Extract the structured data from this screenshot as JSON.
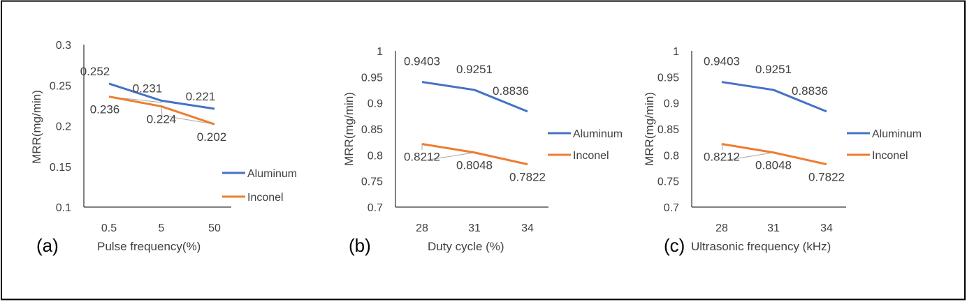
{
  "colors": {
    "aluminum": "#4472C4",
    "inconel": "#ED7D31",
    "axis": "#000000",
    "tick_text": "#404040",
    "leader": "#A6A6A6"
  },
  "chart_data": [
    {
      "type": "line",
      "panel_label": "(a)",
      "xlabel": "Pulse frequency(%)",
      "ylabel": "MRR(mg/min)",
      "categories": [
        "0.5",
        "5",
        "50"
      ],
      "ylim": [
        0.1,
        0.3
      ],
      "yticks": [
        "0.3",
        "0.25",
        "0.2",
        "0.15",
        "0.1"
      ],
      "legend_position": "right",
      "series": [
        {
          "name": "Aluminum",
          "values": [
            0.252,
            0.231,
            0.221
          ],
          "labels": [
            "0.252",
            "0.231",
            "0.221"
          ]
        },
        {
          "name": "Inconel",
          "values": [
            0.236,
            0.224,
            0.202
          ],
          "labels": [
            "0.236",
            "0.224",
            "0.202"
          ]
        }
      ]
    },
    {
      "type": "line",
      "panel_label": "(b)",
      "xlabel": "Duty cycle (%)",
      "ylabel": "MRR(mg/min)",
      "categories": [
        "28",
        "31",
        "34"
      ],
      "ylim": [
        0.7,
        1.0
      ],
      "yticks": [
        "1",
        "0.95",
        "0.9",
        "0.85",
        "0.8",
        "0.75",
        "0.7"
      ],
      "legend_position": "right",
      "series": [
        {
          "name": "Aluminum",
          "values": [
            0.9403,
            0.9251,
            0.8836
          ],
          "labels": [
            "0.9403",
            "0.9251",
            "0.8836"
          ]
        },
        {
          "name": "Inconel",
          "values": [
            0.8212,
            0.8048,
            0.7822
          ],
          "labels": [
            "0.8212",
            "0.8048",
            "0.7822"
          ]
        }
      ]
    },
    {
      "type": "line",
      "panel_label": "(c)",
      "xlabel": "Ultrasonic frequency (kHz)",
      "ylabel": "MRR(mg/min)",
      "categories": [
        "28",
        "31",
        "34"
      ],
      "ylim": [
        0.7,
        1.0
      ],
      "yticks": [
        "1",
        "0.95",
        "0.9",
        "0.85",
        "0.8",
        "0.75",
        "0.7"
      ],
      "legend_position": "right",
      "series": [
        {
          "name": "Aluminum",
          "values": [
            0.9403,
            0.9251,
            0.8836
          ],
          "labels": [
            "0.9403",
            "0.9251",
            "0.8836"
          ]
        },
        {
          "name": "Inconel",
          "values": [
            0.8212,
            0.8048,
            0.7822
          ],
          "labels": [
            "0.8212",
            "0.8048",
            "0.7822"
          ]
        }
      ]
    }
  ]
}
